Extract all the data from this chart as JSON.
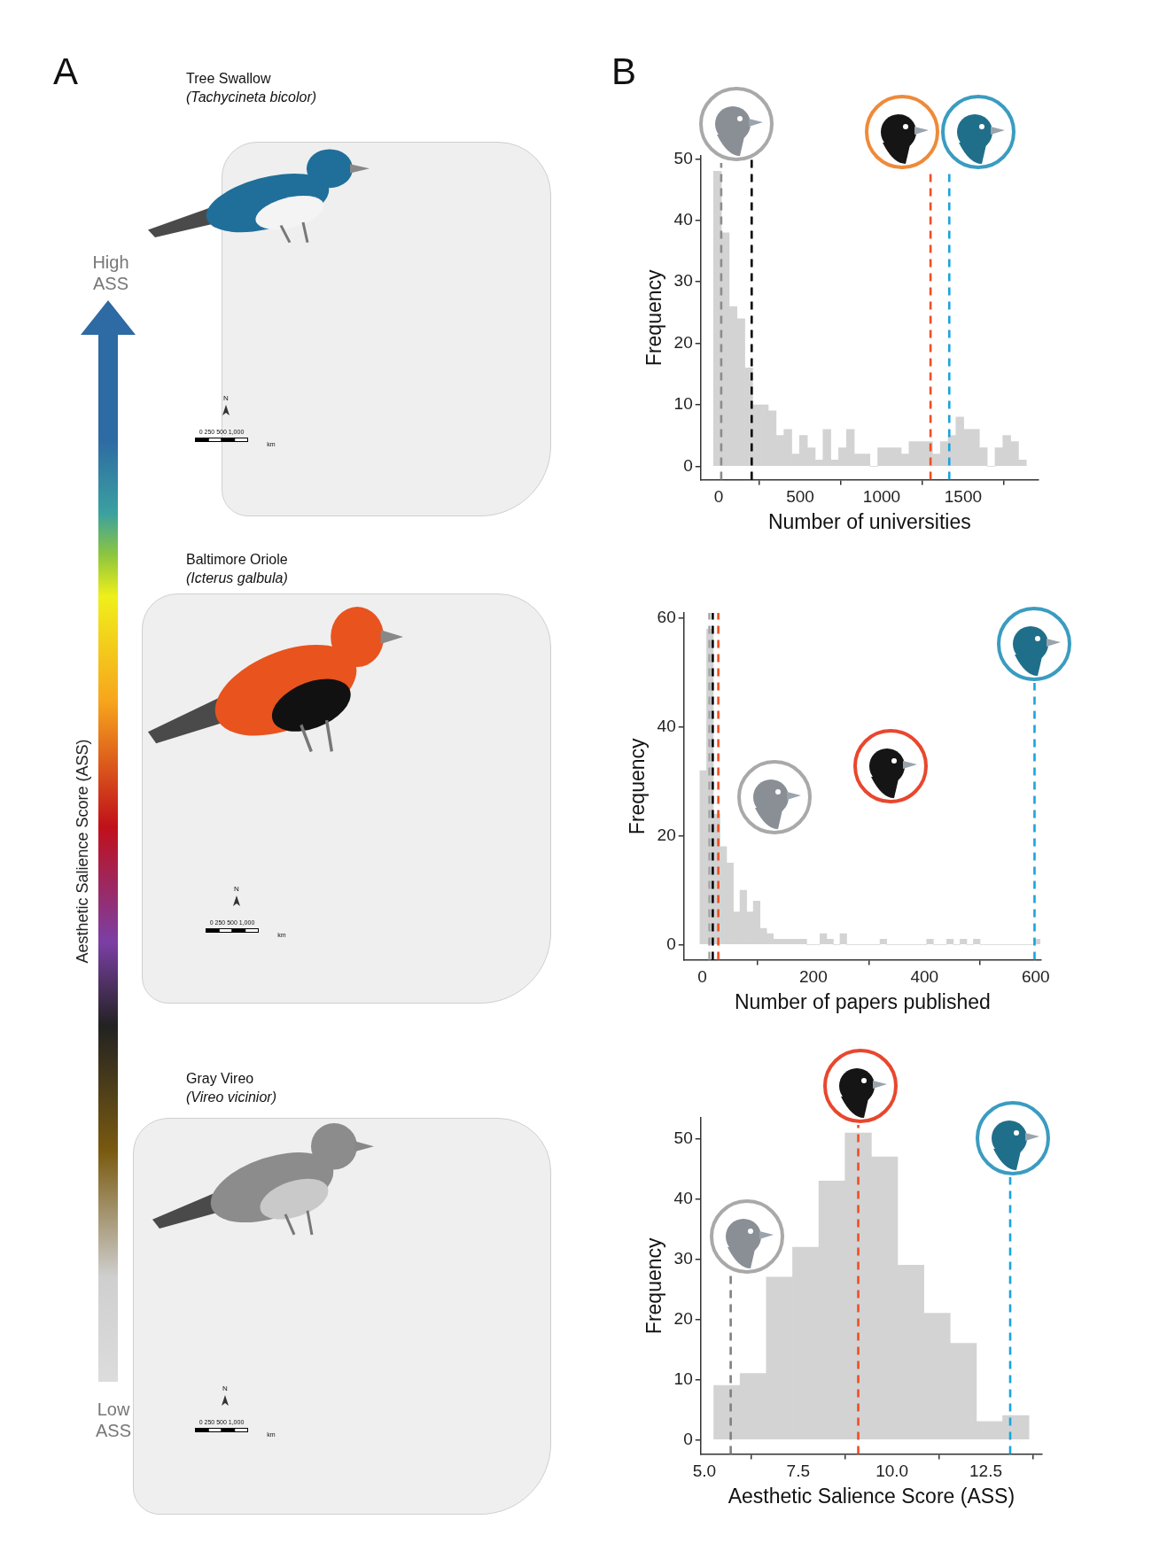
{
  "chart_data": [
    {
      "type": "other",
      "annotations": [
        "A",
        "B",
        "Tree Swallow",
        "(Tachycineta bicolor)",
        "Baltimore Oriole",
        "(Icterus galbula)",
        "Gray Vireo",
        "(Vireo vicinior)",
        "High",
        "ASS",
        "Low",
        "ASS",
        "Aesthetic Salience Score (ASS)",
        "N",
        "0 250 500 1,000",
        "km",
        "N",
        "0 250 500 1,000",
        "km",
        "N",
        "0 250 500 1,000",
        "km"
      ]
    },
    {
      "type": "histogram",
      "xlabel": "Number of universities",
      "ylabel": "Frequency",
      "color": "#d3d3d3",
      "bins": [
        -32,
        16,
        64,
        112,
        160,
        208,
        256,
        304,
        352,
        400,
        448,
        496,
        544,
        592,
        640,
        688,
        736,
        784,
        832,
        880,
        928,
        976,
        1024,
        1072,
        1120,
        1168,
        1216,
        1264,
        1312,
        1360,
        1408,
        1456,
        1504,
        1552,
        1600,
        1648,
        1696,
        1744,
        1792,
        1840,
        1888
      ],
      "values": [
        48,
        38,
        26,
        24,
        16,
        10,
        10,
        9,
        5,
        6,
        2,
        5,
        3,
        1,
        6,
        1,
        3,
        6,
        2,
        2,
        0,
        3,
        3,
        3,
        2,
        4,
        4,
        4,
        2,
        4,
        5,
        8,
        6,
        6,
        3,
        0,
        3,
        5,
        4,
        1
      ],
      "xlim": [
        -111,
        1963
      ],
      "xticks": [
        0,
        500,
        1000,
        1500
      ],
      "ylim": [
        -2.2,
        50.5
      ],
      "yticks": [
        0,
        10,
        20,
        30,
        40,
        50
      ],
      "ref_lines": [
        {
          "axis": "x",
          "value": 15,
          "color": "#8c8c8c",
          "line_style": "dashed"
        },
        {
          "axis": "x",
          "value": 202,
          "color": "#000000",
          "line_style": "dashed"
        },
        {
          "axis": "x",
          "value": 1300,
          "color": "#f04e23",
          "line_style": "dashed"
        },
        {
          "axis": "x",
          "value": 1415,
          "color": "#1ba3dc",
          "line_style": "dashed"
        }
      ]
    },
    {
      "type": "histogram",
      "xlabel": "Number of papers published",
      "ylabel": "Frequency",
      "color": "#d3d3d3",
      "bins": [
        -4,
        8,
        20,
        32,
        44,
        56,
        68,
        80,
        92,
        104,
        116,
        128,
        140,
        152,
        164,
        176,
        188,
        200,
        212,
        224,
        236,
        248,
        260,
        272,
        284,
        296,
        308,
        320,
        332,
        344,
        356,
        368,
        380,
        392,
        404,
        416,
        428,
        440,
        452,
        464,
        476,
        488,
        500,
        512,
        524,
        536,
        548,
        560,
        572,
        584,
        596,
        608
      ],
      "values": [
        32,
        58,
        24,
        18,
        15,
        6,
        10,
        6,
        8,
        3,
        2,
        1,
        1,
        1,
        1,
        1,
        0,
        0,
        2,
        1,
        0,
        2,
        0,
        0,
        0,
        0,
        0,
        1,
        0,
        0,
        0,
        0,
        0,
        0,
        1,
        0,
        0,
        1,
        0,
        1,
        0,
        1,
        0,
        0,
        0,
        0,
        0,
        0,
        0,
        0,
        1
      ],
      "xlim": [
        -33,
        610
      ],
      "xticks": [
        0,
        200,
        400,
        600
      ],
      "ylim": [
        -2.8,
        61
      ],
      "yticks": [
        0,
        20,
        40,
        60
      ],
      "ref_lines": [
        {
          "axis": "x",
          "value": 13,
          "color": "#a6a6a6",
          "line_style": "dashed"
        },
        {
          "axis": "x",
          "value": 19,
          "color": "#000000",
          "line_style": "dashed"
        },
        {
          "axis": "x",
          "value": 29,
          "color": "#f04e23",
          "line_style": "dashed"
        },
        {
          "axis": "x",
          "value": 598,
          "color": "#1ba3dc",
          "line_style": "dashed"
        }
      ]
    },
    {
      "type": "histogram",
      "xlabel": "Aesthetic Salience Score (ASS)",
      "ylabel": "Frequency",
      "color": "#d3d3d3",
      "bins": [
        5.25,
        5.95,
        6.65,
        7.35,
        8.05,
        8.75,
        9.45,
        10.15,
        10.85,
        11.55,
        12.25,
        12.95,
        13.65
      ],
      "values": [
        9,
        11,
        27,
        32,
        43,
        51,
        47,
        29,
        21,
        16,
        3,
        4
      ],
      "xlim": [
        4.9,
        14
      ],
      "xticks": [
        {
          "value": 5,
          "label": "5.0"
        },
        7.5,
        {
          "value": 10,
          "label": "10.0"
        },
        12.5
      ],
      "ylim": [
        -2.4,
        53.5
      ],
      "yticks": [
        0,
        10,
        20,
        30,
        40,
        50
      ],
      "ref_lines": [
        {
          "axis": "x",
          "value": 5.7,
          "color": "#808080",
          "line_style": "dashed"
        },
        {
          "axis": "x",
          "value": 9.1,
          "color": "#f04e23",
          "line_style": "dashed"
        },
        {
          "axis": "x",
          "value": 13.15,
          "color": "#1ba3dc",
          "line_style": "dashed"
        }
      ]
    }
  ]
}
